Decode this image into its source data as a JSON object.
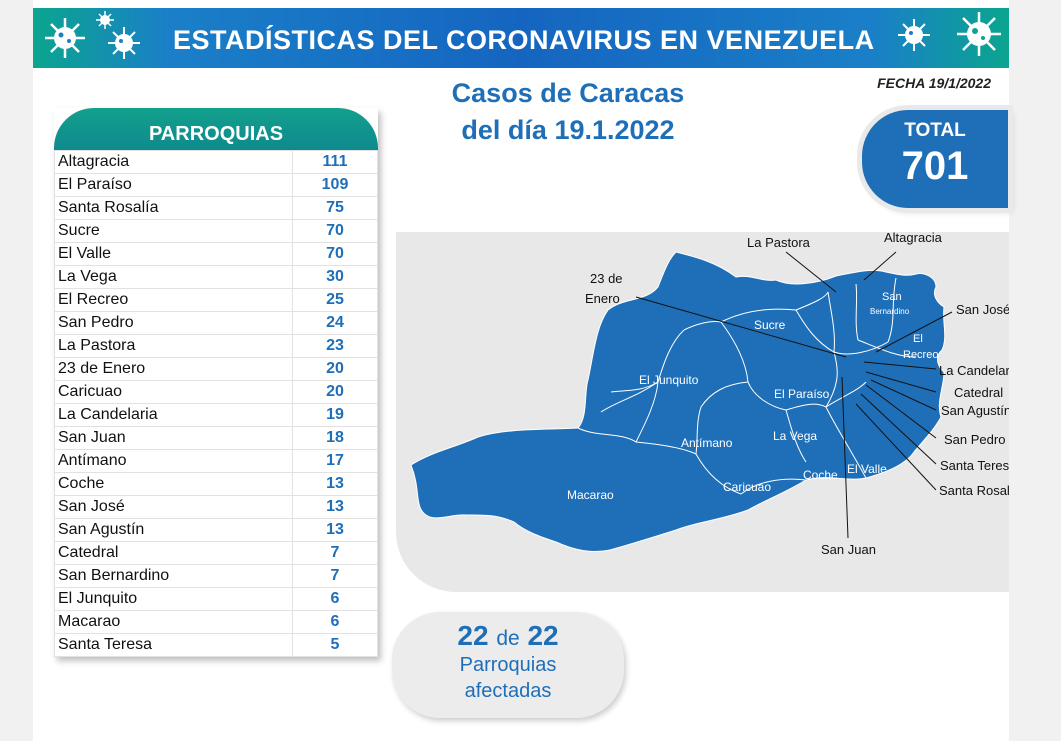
{
  "banner": {
    "title": "ESTADÍSTICAS DEL CORONAVIRUS EN VENEZUELA"
  },
  "fecha": "FECHA 19/1/2022",
  "subtitle": {
    "line1": "Casos de Caracas",
    "line2": "del día 19.1.2022"
  },
  "table": {
    "header": "PARROQUIAS",
    "rows": [
      {
        "name": "Altagracia",
        "cases": "111"
      },
      {
        "name": "El Paraíso",
        "cases": "109"
      },
      {
        "name": "Santa Rosalía",
        "cases": "75"
      },
      {
        "name": "Sucre",
        "cases": "70"
      },
      {
        "name": "El Valle",
        "cases": "70"
      },
      {
        "name": "La Vega",
        "cases": "30"
      },
      {
        "name": "El Recreo",
        "cases": "25"
      },
      {
        "name": "San Pedro",
        "cases": "24"
      },
      {
        "name": "La Pastora",
        "cases": "23"
      },
      {
        "name": "23 de Enero",
        "cases": "20"
      },
      {
        "name": "Caricuao",
        "cases": "20"
      },
      {
        "name": "La Candelaria",
        "cases": "19"
      },
      {
        "name": "San Juan",
        "cases": "18"
      },
      {
        "name": "Antímano",
        "cases": "17"
      },
      {
        "name": "Coche",
        "cases": "13"
      },
      {
        "name": "San José",
        "cases": "13"
      },
      {
        "name": "San Agustín",
        "cases": "13"
      },
      {
        "name": "Catedral",
        "cases": "7"
      },
      {
        "name": "San Bernardino",
        "cases": "7"
      },
      {
        "name": "El Junquito",
        "cases": "6"
      },
      {
        "name": "Macarao",
        "cases": "6"
      },
      {
        "name": "Santa Teresa",
        "cases": "5"
      }
    ]
  },
  "total": {
    "label": "TOTAL",
    "value": "701"
  },
  "afectadas": {
    "count": "22",
    "de": "de",
    "of": "22",
    "line1": "Parroquias",
    "line2": "afectadas"
  },
  "map": {
    "fill_color": "#1f6fb8",
    "labels": {
      "sucre": "Sucre",
      "el_junquito": "El Junquito",
      "el_paraiso": "El Paraíso",
      "antimano": "Antímano",
      "la_vega": "La Vega",
      "macarao": "Macarao",
      "caricuao": "Caricuao",
      "coche": "Coche",
      "el_valle": "El Valle",
      "san_bernardino_1": "San",
      "san_bernardino_2": "Bernardino",
      "el_recreo_1": "El",
      "el_recreo_2": "Recreo"
    },
    "callouts": {
      "la_pastora": "La Pastora",
      "altagracia": "Altagracia",
      "enero_1": "23 de",
      "enero_2": "Enero",
      "san_jose": "San José",
      "la_candelaria": "La Candelaria",
      "catedral": "Catedral",
      "san_agustin": "San Agustín",
      "san_pedro": "San Pedro",
      "santa_teresa": "Santa Teresa",
      "santa_rosalia": "Santa Rosalía",
      "san_juan": "San Juan"
    }
  }
}
